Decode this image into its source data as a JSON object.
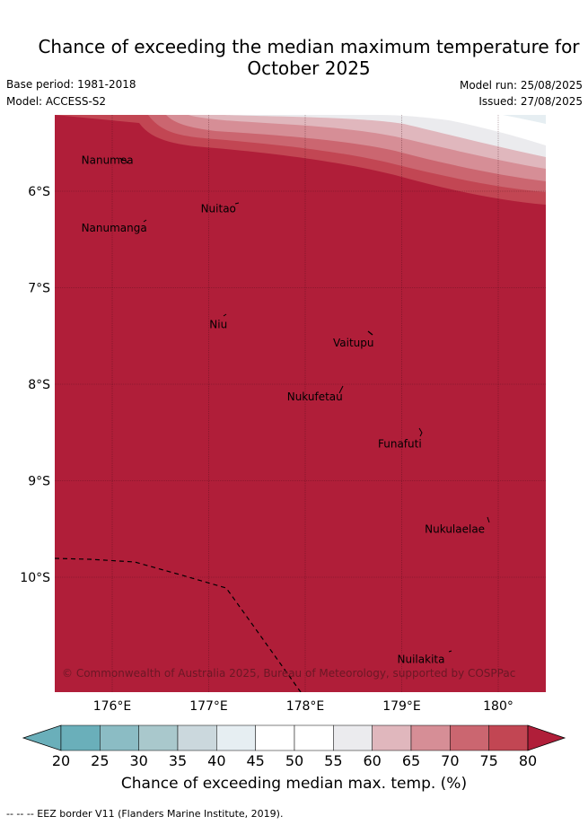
{
  "header": {
    "title_line1": "Chance of exceeding the median maximum temperature for",
    "title_line2": "October 2025",
    "base_period": "Base period: 1981-2018",
    "model": "Model: ACCESS-S2",
    "model_run": "Model run: 25/08/2025",
    "issued": "Issued: 27/08/2025"
  },
  "map": {
    "lat_labels": [
      "6°S",
      "7°S",
      "8°S",
      "9°S",
      "10°S"
    ],
    "lon_labels": [
      "176°E",
      "177°E",
      "178°E",
      "179°E",
      "180°"
    ],
    "places": [
      {
        "name": "Nanumea",
        "lon": 175.95,
        "lat": -5.68
      },
      {
        "name": "Nuitao",
        "lon": 177.1,
        "lat": -6.18
      },
      {
        "name": "Nanumanga",
        "lon": 176.02,
        "lat": -6.38
      },
      {
        "name": "Niu",
        "lon": 177.1,
        "lat": -7.38
      },
      {
        "name": "Vaitupu",
        "lon": 178.5,
        "lat": -7.57
      },
      {
        "name": "Nukufetau",
        "lon": 178.1,
        "lat": -8.13
      },
      {
        "name": "Funafuti",
        "lon": 178.98,
        "lat": -8.62
      },
      {
        "name": "Nukulaelae",
        "lon": 179.55,
        "lat": -9.5
      },
      {
        "name": "Nuilakita",
        "lon": 179.2,
        "lat": -10.85
      }
    ],
    "copyright": "© Commonwealth of Australia 2025, Bureau of Meteorology, supported by COSPPac",
    "fill_value_percent": 80,
    "colors": {
      "above_80": "#b01e39",
      "band_75_80": "#c24653",
      "band_70_75": "#cb6670",
      "band_65_70": "#d68e96",
      "band_60_65": "#e0b7bd",
      "band_55_60": "#ebebee",
      "band_50_55": "#ffffff",
      "band_45_50": "#ffffff",
      "band_40_45": "#e6eef2"
    }
  },
  "colorbar": {
    "ticks": [
      "20",
      "25",
      "30",
      "35",
      "40",
      "45",
      "50",
      "55",
      "60",
      "65",
      "70",
      "75",
      "80"
    ],
    "colors": [
      "#6aafba",
      "#8bbcc4",
      "#a9c8cc",
      "#cbd8dd",
      "#e6eef2",
      "#ffffff",
      "#ffffff",
      "#ebebee",
      "#e0b7bd",
      "#d68e96",
      "#cb6670",
      "#c24653"
    ],
    "under_color": "#6aafba",
    "over_color": "#b01e39",
    "label": "Chance of exceeding median max. temp. (%)"
  },
  "footnote": "--  --  -- EEZ border V11 (Flanders Marine Institute, 2019)."
}
